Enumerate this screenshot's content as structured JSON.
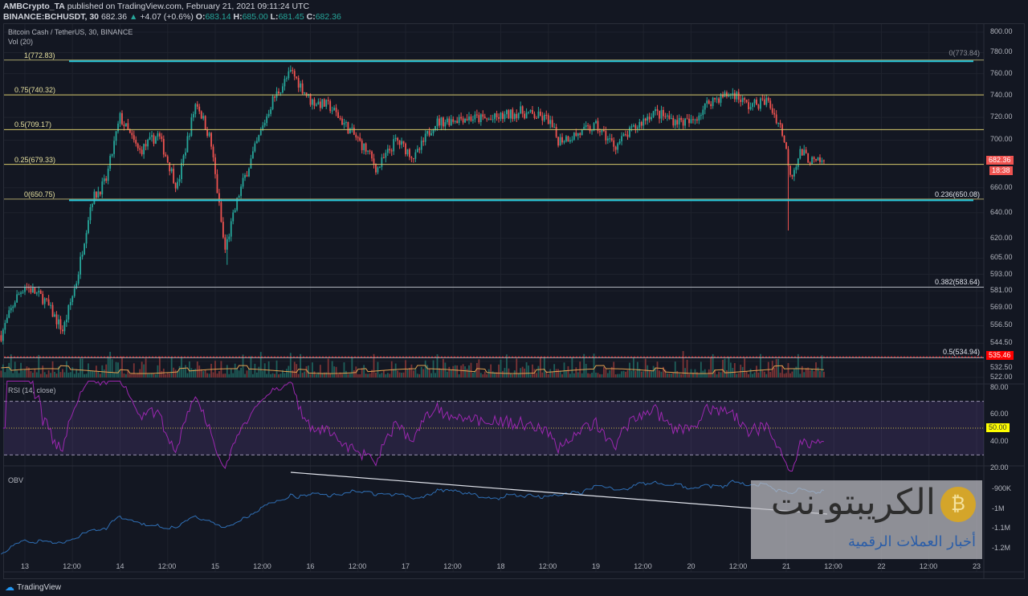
{
  "header": {
    "publisher": "AMBCrypto_TA",
    "published_text": "published on TradingView.com, February 21, 2021 09:11:24 UTC",
    "symbol": "BINANCE:BCHUSDT, 30",
    "last": "682.36",
    "change": "+4.07 (+0.6%)",
    "open": "683.14",
    "high": "685.00",
    "low": "681.45",
    "close": "682.36"
  },
  "legend": {
    "title": "Bitcoin Cash / TetherUS, 30, BINANCE",
    "vol": "Vol (20)",
    "rsi": "RSI (14, close)",
    "obv": "OBV"
  },
  "colors": {
    "up": "#26a69a",
    "down": "#ef5350",
    "fib": "#d6c96b",
    "teal": "#26c6da",
    "rsi": "#9c27b0",
    "obv": "#2f6fb5"
  },
  "chart_data": {
    "type": "candlestick",
    "scale": "log",
    "y_ticks": [
      "800.00",
      "780.00",
      "760.00",
      "740.00",
      "720.00",
      "700.00",
      "660.00",
      "640.00",
      "620.00",
      "605.00",
      "593.00",
      "581.00",
      "569.00",
      "556.50",
      "544.50",
      "532.50",
      "522.00"
    ],
    "x_ticks": [
      "13",
      "12:00",
      "14",
      "12:00",
      "15",
      "12:00",
      "16",
      "12:00",
      "17",
      "12:00",
      "18",
      "12:00",
      "19",
      "12:00",
      "20",
      "12:00",
      "21",
      "12:00",
      "22",
      "12:00",
      "23"
    ],
    "price_path": [
      [
        12.75,
        550
      ],
      [
        12.9,
        575
      ],
      [
        13.0,
        585
      ],
      [
        13.2,
        575
      ],
      [
        13.4,
        553
      ],
      [
        13.55,
        590
      ],
      [
        13.7,
        650
      ],
      [
        13.85,
        665
      ],
      [
        14.0,
        720
      ],
      [
        14.2,
        690
      ],
      [
        14.4,
        705
      ],
      [
        14.6,
        660
      ],
      [
        14.8,
        735
      ],
      [
        14.95,
        700
      ],
      [
        15.1,
        610
      ],
      [
        15.25,
        655
      ],
      [
        15.45,
        700
      ],
      [
        15.6,
        735
      ],
      [
        15.8,
        762
      ],
      [
        16.0,
        735
      ],
      [
        16.2,
        730
      ],
      [
        16.4,
        710
      ],
      [
        16.6,
        690
      ],
      [
        16.7,
        675
      ],
      [
        16.9,
        700
      ],
      [
        17.1,
        685
      ],
      [
        17.3,
        715
      ],
      [
        17.6,
        720
      ],
      [
        17.9,
        718
      ],
      [
        18.2,
        725
      ],
      [
        18.5,
        718
      ],
      [
        18.6,
        700
      ],
      [
        18.8,
        705
      ],
      [
        19.0,
        712
      ],
      [
        19.2,
        695
      ],
      [
        19.4,
        710
      ],
      [
        19.6,
        725
      ],
      [
        19.8,
        718
      ],
      [
        20.0,
        715
      ],
      [
        20.2,
        735
      ],
      [
        20.45,
        742
      ],
      [
        20.6,
        730
      ],
      [
        20.8,
        735
      ],
      [
        20.95,
        710
      ],
      [
        21.0,
        690
      ],
      [
        21.05,
        670
      ],
      [
        21.15,
        690
      ],
      [
        21.3,
        680
      ],
      [
        21.4,
        682.36
      ]
    ],
    "fib_left": [
      {
        "label": "1(772.83)",
        "value": 772.83
      },
      {
        "label": "0.75(740.32)",
        "value": 740.32
      },
      {
        "label": "0.5(709.17)",
        "value": 709.17
      },
      {
        "label": "0.25(679.33)",
        "value": 679.33
      },
      {
        "label": "0(650.75)",
        "value": 650.75
      }
    ],
    "fib_right": [
      {
        "label": "0(773.84)",
        "value": 773.84
      },
      {
        "label": "0.236(650.08)",
        "value": 650.08
      },
      {
        "label": "0.382(583.64)",
        "value": 583.64
      },
      {
        "label": "0.5(534.94)",
        "value": 534.94
      }
    ],
    "price_tag": "682.36",
    "countdown": "18:38",
    "red_line_tag": "535.46",
    "rsi_ticks": [
      "80.00",
      "60.00",
      "40.00",
      "20.00"
    ],
    "rsi_mid_tag": "50.00",
    "rsi_band": [
      30,
      70
    ],
    "obv_ticks": [
      "-900K",
      "-1M",
      "-1.1M",
      "-1.2M"
    ]
  },
  "footer": {
    "brand": "TradingView"
  },
  "watermark": {
    "title": "الكريبتو.نت",
    "subtitle": "أخبار العملات الرقمية"
  }
}
